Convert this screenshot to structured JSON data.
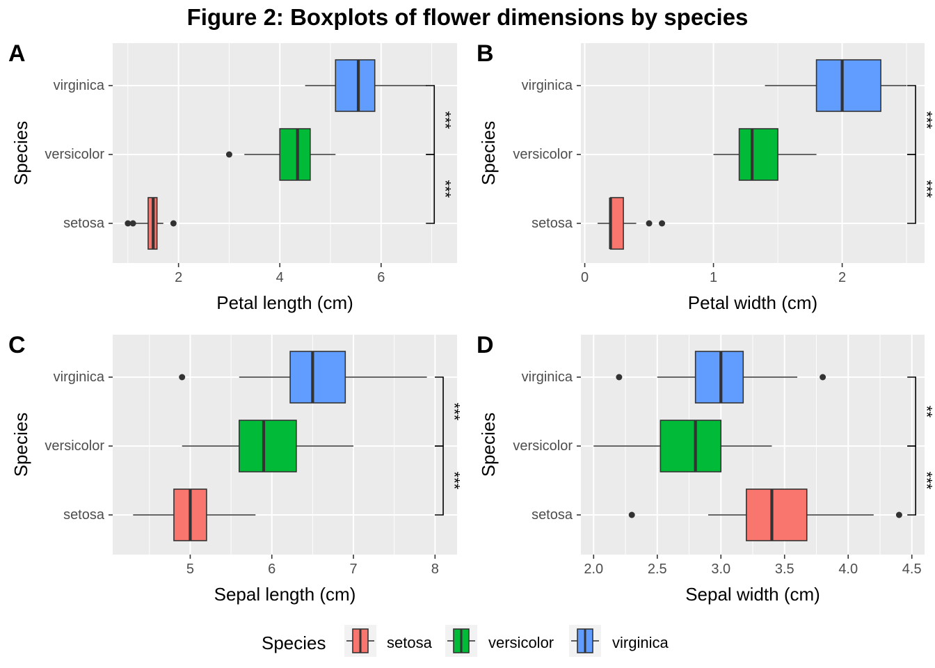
{
  "figure": {
    "title": "Figure 2: Boxplots of flower dimensions by species"
  },
  "legend": {
    "title": "Species",
    "position": "bottom",
    "entries": [
      {
        "label": "setosa",
        "color": "#F8766D"
      },
      {
        "label": "versicolor",
        "color": "#00BA38"
      },
      {
        "label": "virginica",
        "color": "#619CFF"
      }
    ]
  },
  "chart_data": [
    {
      "type": "boxplot",
      "panel_label": "A",
      "xlabel": "Petal length (cm)",
      "ylabel": "Species",
      "xlim": [
        0.7,
        7.5
      ],
      "xticks": [
        2,
        4,
        6
      ],
      "xtick_labels": [
        "2",
        "4",
        "6"
      ],
      "minor_grid": [
        1,
        3,
        5,
        7
      ],
      "grid": true,
      "categories": [
        "setosa",
        "versicolor",
        "virginica"
      ],
      "boxes": [
        {
          "species": "setosa",
          "min": 1.1,
          "q1": 1.4,
          "median": 1.5,
          "q3": 1.575,
          "max": 1.7,
          "outliers": [
            1.0,
            1.1,
            1.9
          ]
        },
        {
          "species": "versicolor",
          "min": 3.3,
          "q1": 4.0,
          "median": 4.35,
          "q3": 4.6,
          "max": 5.1,
          "outliers": [
            3.0
          ]
        },
        {
          "species": "virginica",
          "min": 4.5,
          "q1": 5.1,
          "median": 5.55,
          "q3": 5.875,
          "max": 6.9,
          "outliers": []
        }
      ],
      "significance": [
        {
          "from": "setosa",
          "to": "versicolor",
          "label": "***"
        },
        {
          "from": "versicolor",
          "to": "virginica",
          "label": "***"
        }
      ],
      "bracket_x": 7.05
    },
    {
      "type": "boxplot",
      "panel_label": "B",
      "xlabel": "Petal width (cm)",
      "ylabel": "Species",
      "xlim": [
        -0.03,
        2.64
      ],
      "xticks": [
        0,
        1,
        2
      ],
      "xtick_labels": [
        "0",
        "1",
        "2"
      ],
      "minor_grid": [
        0.5,
        1.5,
        2.5
      ],
      "grid": true,
      "categories": [
        "setosa",
        "versicolor",
        "virginica"
      ],
      "boxes": [
        {
          "species": "setosa",
          "min": 0.1,
          "q1": 0.2,
          "median": 0.2,
          "q3": 0.3,
          "max": 0.4,
          "outliers": [
            0.5,
            0.6
          ]
        },
        {
          "species": "versicolor",
          "min": 1.0,
          "q1": 1.2,
          "median": 1.3,
          "q3": 1.5,
          "max": 1.8,
          "outliers": []
        },
        {
          "species": "virginica",
          "min": 1.4,
          "q1": 1.8,
          "median": 2.0,
          "q3": 2.3,
          "max": 2.5,
          "outliers": []
        }
      ],
      "significance": [
        {
          "from": "setosa",
          "to": "versicolor",
          "label": "***"
        },
        {
          "from": "versicolor",
          "to": "virginica",
          "label": "***"
        }
      ],
      "bracket_x": 2.57
    },
    {
      "type": "boxplot",
      "panel_label": "C",
      "xlabel": "Sepal length (cm)",
      "ylabel": "Species",
      "xlim": [
        4.05,
        8.27
      ],
      "xticks": [
        5,
        6,
        7,
        8
      ],
      "xtick_labels": [
        "5",
        "6",
        "7",
        "8"
      ],
      "minor_grid": [
        4.5,
        5.5,
        6.5,
        7.5
      ],
      "grid": true,
      "categories": [
        "setosa",
        "versicolor",
        "virginica"
      ],
      "boxes": [
        {
          "species": "setosa",
          "min": 4.3,
          "q1": 4.8,
          "median": 5.0,
          "q3": 5.2,
          "max": 5.8,
          "outliers": []
        },
        {
          "species": "versicolor",
          "min": 4.9,
          "q1": 5.6,
          "median": 5.9,
          "q3": 6.3,
          "max": 7.0,
          "outliers": []
        },
        {
          "species": "virginica",
          "min": 5.6,
          "q1": 6.225,
          "median": 6.5,
          "q3": 6.9,
          "max": 7.9,
          "outliers": [
            4.9
          ]
        }
      ],
      "significance": [
        {
          "from": "setosa",
          "to": "versicolor",
          "label": "***"
        },
        {
          "from": "versicolor",
          "to": "virginica",
          "label": "***"
        }
      ],
      "bracket_x": 8.1
    },
    {
      "type": "boxplot",
      "panel_label": "D",
      "xlabel": "Sepal width (cm)",
      "ylabel": "Species",
      "xlim": [
        1.9,
        4.6
      ],
      "xticks": [
        2.0,
        2.5,
        3.0,
        3.5,
        4.0,
        4.5
      ],
      "xtick_labels": [
        "2.0",
        "2.5",
        "3.0",
        "3.5",
        "4.0",
        "4.5"
      ],
      "minor_grid": [
        2.25,
        2.75,
        3.25,
        3.75,
        4.25
      ],
      "grid": true,
      "categories": [
        "setosa",
        "versicolor",
        "virginica"
      ],
      "boxes": [
        {
          "species": "setosa",
          "min": 2.9,
          "q1": 3.2,
          "median": 3.4,
          "q3": 3.675,
          "max": 4.2,
          "outliers": [
            2.3,
            4.4
          ]
        },
        {
          "species": "versicolor",
          "min": 2.0,
          "q1": 2.525,
          "median": 2.8,
          "q3": 3.0,
          "max": 3.4,
          "outliers": []
        },
        {
          "species": "virginica",
          "min": 2.5,
          "q1": 2.8,
          "median": 3.0,
          "q3": 3.175,
          "max": 3.6,
          "outliers": [
            2.2,
            3.8
          ]
        }
      ],
      "significance": [
        {
          "from": "setosa",
          "to": "versicolor",
          "label": "***"
        },
        {
          "from": "versicolor",
          "to": "virginica",
          "label": "**"
        }
      ],
      "bracket_x": 4.53
    }
  ]
}
